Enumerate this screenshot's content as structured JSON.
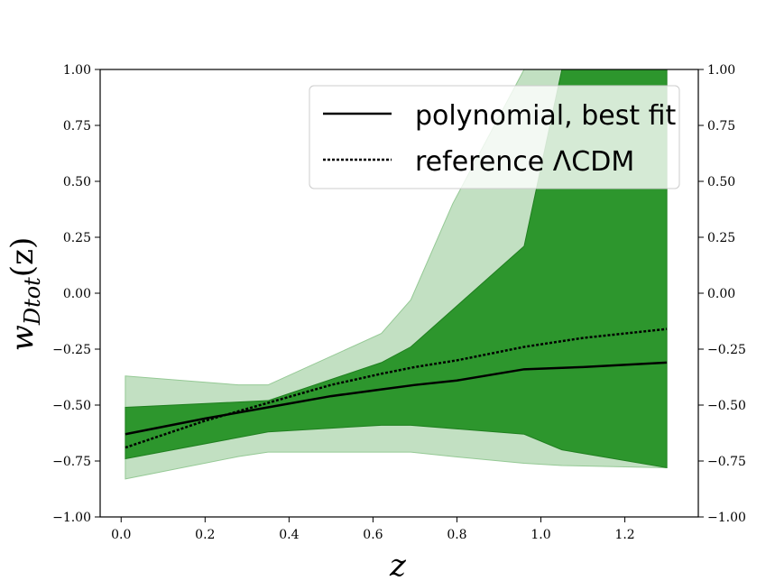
{
  "chart_data": {
    "type": "area",
    "xlabel": "z",
    "ylabel_main": "w",
    "ylabel_sub": "Dtot",
    "ylabel_suffix": "(z)",
    "xlim": [
      -0.05,
      1.375
    ],
    "ylim": [
      -1.0,
      1.0
    ],
    "xticks": [
      0.0,
      0.2,
      0.4,
      0.6,
      0.8,
      1.0,
      1.2
    ],
    "xtick_labels": [
      "0.0",
      "0.2",
      "0.4",
      "0.6",
      "0.8",
      "1.0",
      "1.2"
    ],
    "yticks": [
      -1.0,
      -0.75,
      -0.5,
      -0.25,
      0.0,
      0.25,
      0.5,
      0.75,
      1.0
    ],
    "ytick_labels": [
      "−1.00",
      "−0.75",
      "−0.50",
      "−0.25",
      "0.00",
      "0.25",
      "0.50",
      "0.75",
      "1.00"
    ],
    "legend_position": "top-right",
    "colors": {
      "band_2sigma": "#c2e0c2",
      "band_2sigma_edge": "#95c995",
      "band_1sigma": "#2d962d",
      "band_1sigma_edge": "#1f7f1f",
      "line": "#000000"
    },
    "series": [
      {
        "name": "polynomial, best fit",
        "style": "solid",
        "x": [
          0.01,
          0.2,
          0.35,
          0.5,
          0.62,
          0.7,
          0.8,
          0.96,
          1.1,
          1.3
        ],
        "y": [
          -0.63,
          -0.56,
          -0.51,
          -0.46,
          -0.43,
          -0.41,
          -0.39,
          -0.34,
          -0.33,
          -0.31
        ]
      },
      {
        "name": "reference ΛCDM",
        "style": "dotted",
        "x": [
          0.01,
          0.2,
          0.35,
          0.5,
          0.62,
          0.7,
          0.8,
          0.96,
          1.1,
          1.3
        ],
        "y": [
          -0.69,
          -0.57,
          -0.49,
          -0.41,
          -0.36,
          -0.33,
          -0.3,
          -0.24,
          -0.2,
          -0.16
        ]
      }
    ],
    "bands": [
      {
        "level": "outer",
        "x": [
          0.01,
          0.28,
          0.35,
          0.62,
          0.69,
          0.79,
          0.96,
          1.05,
          1.3
        ],
        "upper": [
          -0.37,
          -0.41,
          -0.41,
          -0.18,
          -0.03,
          0.4,
          1.0,
          1.0,
          1.0
        ],
        "lower": [
          -0.83,
          -0.73,
          -0.71,
          -0.71,
          -0.71,
          -0.73,
          -0.76,
          -0.77,
          -0.78
        ]
      },
      {
        "level": "inner",
        "x": [
          0.01,
          0.35,
          0.62,
          0.69,
          0.96,
          1.05,
          1.3
        ],
        "upper": [
          -0.51,
          -0.48,
          -0.31,
          -0.24,
          0.21,
          1.0,
          1.0
        ],
        "lower": [
          -0.74,
          -0.62,
          -0.59,
          -0.59,
          -0.63,
          -0.7,
          -0.78
        ]
      }
    ]
  }
}
